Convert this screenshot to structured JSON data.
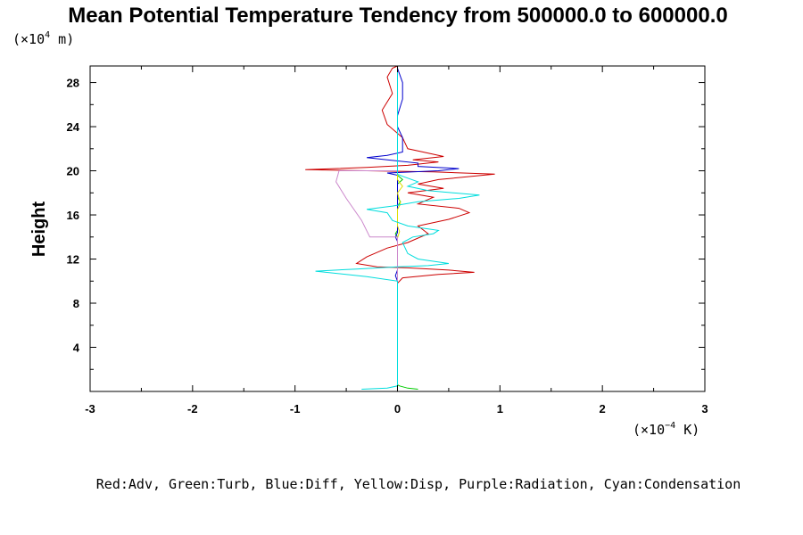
{
  "chart_data": {
    "type": "line",
    "title": "Mean Potential Temperature Tendency from 500000.0 to 600000.0",
    "ylabel": "Height",
    "y_unit": {
      "base": "(×10",
      "exp": "4",
      "tail": " m)"
    },
    "x_unit": {
      "base": "(×10",
      "exp": "−4",
      "tail": " K)"
    },
    "xlim": [
      -3,
      3
    ],
    "ylim": [
      0,
      29.5
    ],
    "x_ticks": [
      -3,
      -2,
      -1,
      0,
      1,
      2,
      3
    ],
    "x_tick_labels": [
      "-3",
      "-2",
      "-1",
      "0",
      "1",
      "2",
      "3"
    ],
    "y_ticks": [
      4,
      8,
      12,
      16,
      20,
      24,
      28
    ],
    "y_tick_labels": [
      "4",
      "8",
      "12",
      "16",
      "20",
      "24",
      "28"
    ],
    "grid": false,
    "legend_caption": "Red:Adv, Green:Turb, Blue:Diff, Yellow:Disp, Purple:Radiation, Cyan:Condensation",
    "series": [
      {
        "name": "Adv",
        "color": "#cc0000",
        "points": [
          [
            0,
            6.8
          ],
          [
            0,
            9.8
          ],
          [
            0.05,
            10.3
          ],
          [
            0.4,
            10.6
          ],
          [
            0.75,
            10.8
          ],
          [
            0.5,
            11.0
          ],
          [
            0.1,
            11.2
          ],
          [
            -0.2,
            11.3
          ],
          [
            -0.4,
            11.6
          ],
          [
            -0.3,
            12.2
          ],
          [
            -0.1,
            13.0
          ],
          [
            0.1,
            13.5
          ],
          [
            0.3,
            14.3
          ],
          [
            0.2,
            15.0
          ],
          [
            0.5,
            15.6
          ],
          [
            0.7,
            16.2
          ],
          [
            0.6,
            16.6
          ],
          [
            0.2,
            17.0
          ],
          [
            0.35,
            17.6
          ],
          [
            0.1,
            18.0
          ],
          [
            0.45,
            18.4
          ],
          [
            0.2,
            18.8
          ],
          [
            0.4,
            19.2
          ],
          [
            0.95,
            19.7
          ],
          [
            0.35,
            19.9
          ],
          [
            -0.9,
            20.1
          ],
          [
            -0.3,
            20.3
          ],
          [
            0.1,
            20.5
          ],
          [
            0.4,
            20.8
          ],
          [
            0.15,
            21.0
          ],
          [
            0.45,
            21.3
          ],
          [
            0.25,
            21.7
          ],
          [
            0.1,
            22.0
          ],
          [
            0.05,
            23.0
          ],
          [
            -0.1,
            24.2
          ],
          [
            -0.15,
            25.5
          ],
          [
            -0.05,
            27.0
          ],
          [
            -0.1,
            28.5
          ],
          [
            -0.05,
            29.3
          ],
          [
            0,
            29.5
          ]
        ]
      },
      {
        "name": "Turb",
        "color": "#00cc00",
        "points": [
          [
            0.2,
            0.2
          ],
          [
            0.1,
            0.3
          ],
          [
            0.02,
            0.5
          ],
          [
            0,
            0.6
          ],
          [
            0,
            14.0
          ],
          [
            -0.02,
            14.3
          ],
          [
            0,
            14.6
          ],
          [
            0,
            16.8
          ],
          [
            0.03,
            17.2
          ],
          [
            0,
            17.6
          ],
          [
            0,
            18.8
          ],
          [
            0.05,
            19.2
          ],
          [
            0,
            19.6
          ],
          [
            0,
            29.5
          ]
        ]
      },
      {
        "name": "Diff",
        "color": "#0000cc",
        "points": [
          [
            0,
            0.5
          ],
          [
            0,
            10.0
          ],
          [
            -0.02,
            10.5
          ],
          [
            0,
            11.0
          ],
          [
            0,
            13.6
          ],
          [
            -0.02,
            14.0
          ],
          [
            0,
            14.4
          ],
          [
            0,
            19.6
          ],
          [
            -0.1,
            19.8
          ],
          [
            0.4,
            20.0
          ],
          [
            0.6,
            20.2
          ],
          [
            0.2,
            20.4
          ],
          [
            0.2,
            20.7
          ],
          [
            -0.1,
            21.0
          ],
          [
            -0.3,
            21.2
          ],
          [
            -0.1,
            21.4
          ],
          [
            0.05,
            21.7
          ],
          [
            0.05,
            23.0
          ],
          [
            0,
            24.0
          ],
          [
            0,
            25.0
          ],
          [
            0.05,
            26.5
          ],
          [
            0.05,
            28.0
          ],
          [
            0,
            29.3
          ],
          [
            0,
            29.5
          ]
        ]
      },
      {
        "name": "Disp",
        "color": "#dddd00",
        "points": [
          [
            0,
            0.5
          ],
          [
            0,
            13.9
          ],
          [
            0.02,
            14.5
          ],
          [
            0,
            15.0
          ],
          [
            0,
            16.5
          ],
          [
            0.03,
            17.0
          ],
          [
            0,
            18.0
          ],
          [
            0.05,
            18.6
          ],
          [
            0,
            19.2
          ],
          [
            0,
            29.5
          ]
        ]
      },
      {
        "name": "Radiation",
        "color": "#cc88cc",
        "points": [
          [
            0,
            0.5
          ],
          [
            0,
            14.0
          ],
          [
            -0.27,
            14.0
          ],
          [
            -0.35,
            15.5
          ],
          [
            -0.5,
            17.5
          ],
          [
            -0.6,
            19.0
          ],
          [
            -0.57,
            20.0
          ],
          [
            0,
            20.0
          ],
          [
            0,
            29.5
          ]
        ]
      },
      {
        "name": "Condensation",
        "color": "#00dddd",
        "points": [
          [
            -0.35,
            0.2
          ],
          [
            -0.1,
            0.3
          ],
          [
            0,
            0.5
          ],
          [
            0,
            10.0
          ],
          [
            -0.3,
            10.4
          ],
          [
            -0.8,
            10.9
          ],
          [
            -0.4,
            11.1
          ],
          [
            0,
            11.3
          ],
          [
            0.3,
            11.4
          ],
          [
            0.5,
            11.6
          ],
          [
            0.2,
            12.0
          ],
          [
            0.1,
            12.5
          ],
          [
            0.05,
            13.5
          ],
          [
            0.15,
            14.0
          ],
          [
            0.35,
            14.3
          ],
          [
            0.4,
            14.6
          ],
          [
            0.1,
            15.0
          ],
          [
            -0.05,
            15.5
          ],
          [
            -0.1,
            16.2
          ],
          [
            -0.3,
            16.5
          ],
          [
            -0.05,
            16.8
          ],
          [
            0.2,
            17.2
          ],
          [
            0.6,
            17.5
          ],
          [
            0.8,
            17.8
          ],
          [
            0.3,
            18.2
          ],
          [
            0.1,
            18.6
          ],
          [
            0.2,
            19.0
          ],
          [
            0.05,
            19.5
          ],
          [
            0,
            19.7
          ],
          [
            0,
            29.5
          ]
        ]
      }
    ]
  }
}
